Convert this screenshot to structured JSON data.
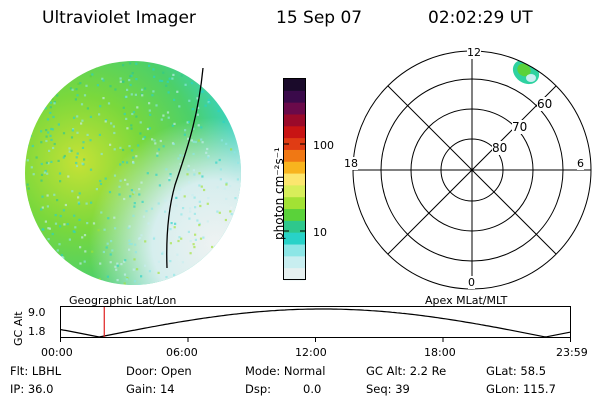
{
  "header": {
    "instrument": "Ultraviolet Imager",
    "date": "15 Sep 07",
    "time": "02:02:29 UT"
  },
  "colorbar": {
    "unit_label": "photon cm⁻²s⁻¹",
    "ticks": [
      "100",
      "10"
    ],
    "colors": [
      "#1a0a2a",
      "#3a0a4a",
      "#6a0a4a",
      "#9a0a2a",
      "#c81414",
      "#e03c14",
      "#f07814",
      "#f8b41e",
      "#fce66e",
      "#d8ee5a",
      "#a2e234",
      "#5ad23a",
      "#2ec88c",
      "#28d2c8",
      "#8ce6e6",
      "#c8eef0",
      "#e6f0f0"
    ]
  },
  "polar": {
    "mlt_labels": {
      "top": "12",
      "left": "18",
      "right": "6",
      "bottom": "0"
    },
    "lat_labels": [
      "60",
      "70",
      "80"
    ]
  },
  "panel_labels": {
    "left": "Geographic Lat/Lon",
    "right": "Apex MLat/MLT"
  },
  "altitude_plot": {
    "ylabel": "GC Alt",
    "yticks": [
      "9.0",
      "1.8"
    ],
    "xticks": [
      "00:00",
      "06:00",
      "12:00",
      "18:00",
      "23:59"
    ],
    "current_time_fraction": 0.085
  },
  "info": {
    "filter": "Flt: LBHL",
    "ip": "IP: 36.0",
    "door": "Door: Open",
    "gain": "Gain: 14",
    "mode": "Mode: Normal",
    "dsp_label": "Dsp:",
    "dsp_value": "0.0",
    "gc_alt": "GC Alt: 2.2 Re",
    "seq": "Seq: 39",
    "glat": "GLat:  58.5",
    "glon": "GLon: 115.7"
  }
}
